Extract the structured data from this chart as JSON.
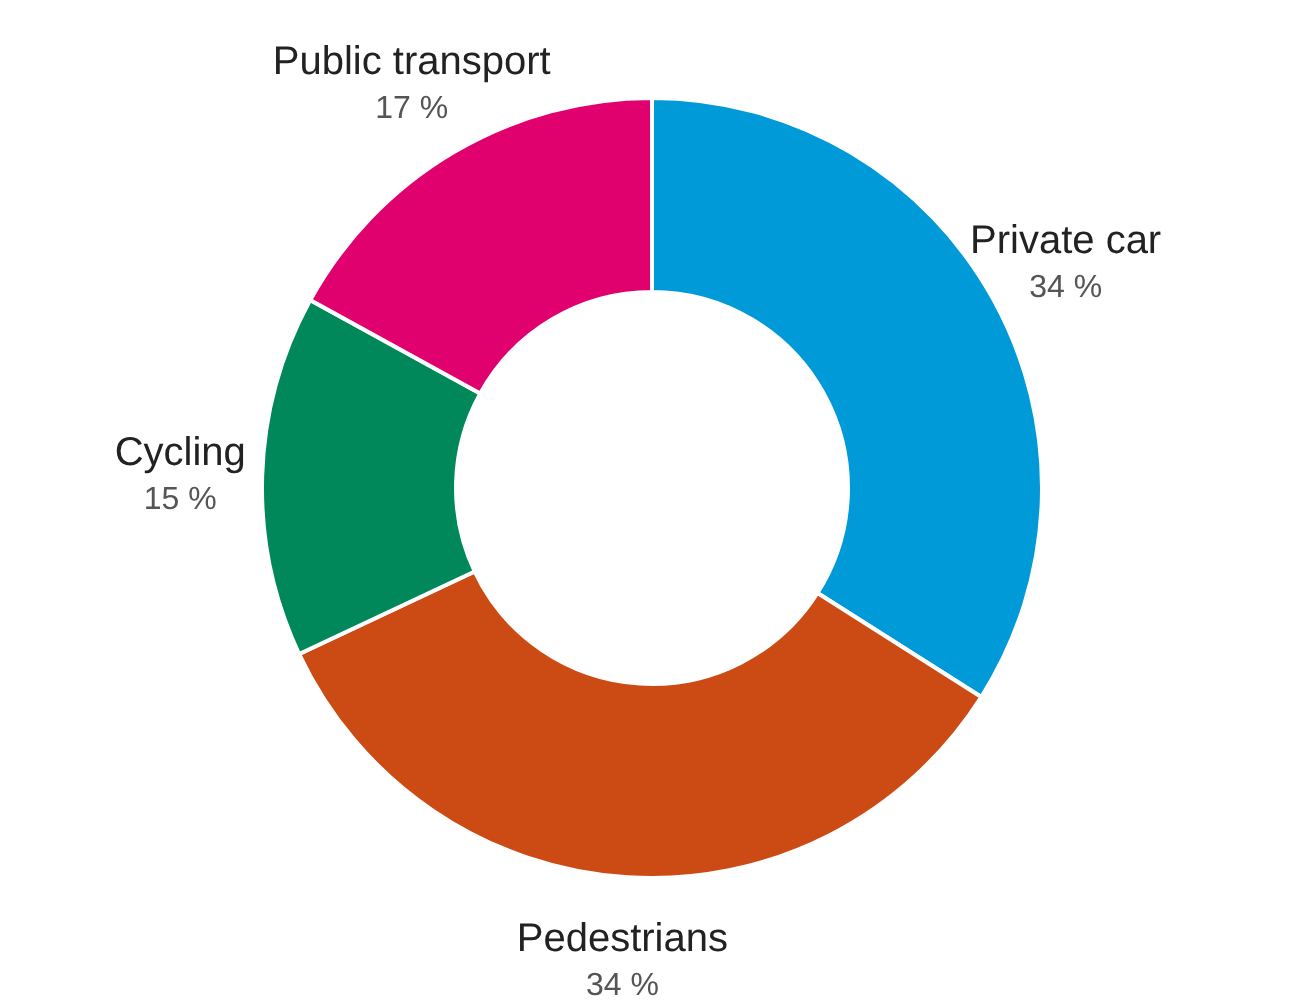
{
  "chart_data": {
    "type": "donut",
    "categories": [
      "Private car",
      "Pedestrians",
      "Cycling",
      "Public transport"
    ],
    "values": [
      34,
      34,
      15,
      17
    ],
    "value_labels": [
      "34 %",
      "34 %",
      "15 %",
      "17 %"
    ],
    "colors": [
      "#009ad8",
      "#cc4a14",
      "#00875a",
      "#e0006e"
    ]
  }
}
